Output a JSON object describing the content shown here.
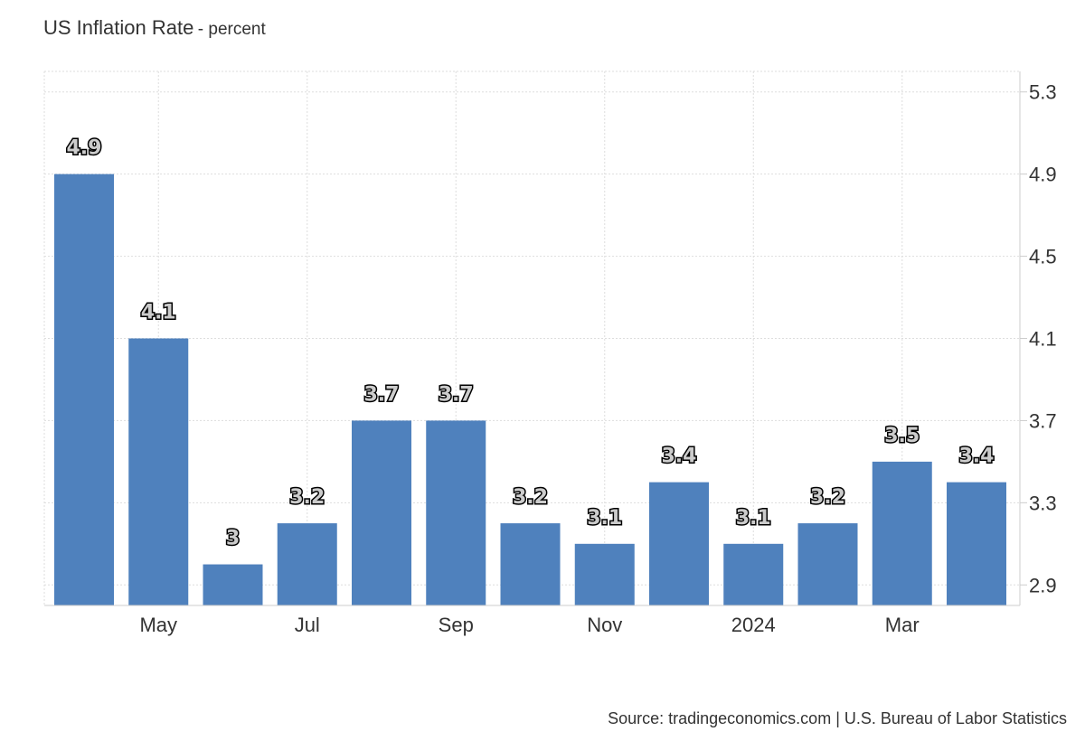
{
  "chart_data": {
    "type": "bar",
    "title": "US Inflation Rate",
    "subtitle": "- percent",
    "source": "Source: tradingeconomics.com | U.S. Bureau of Labor Statistics",
    "values": [
      4.9,
      4.1,
      3,
      3.2,
      3.7,
      3.7,
      3.2,
      3.1,
      3.4,
      3.1,
      3.2,
      3.5,
      3.4
    ],
    "value_labels": [
      "4.9",
      "4.1",
      "3",
      "3.2",
      "3.7",
      "3.7",
      "3.2",
      "3.1",
      "3.4",
      "3.1",
      "3.2",
      "3.5",
      "3.4"
    ],
    "x_tick_labels": [
      {
        "label": "May",
        "index": 1
      },
      {
        "label": "Jul",
        "index": 3
      },
      {
        "label": "Sep",
        "index": 5
      },
      {
        "label": "Nov",
        "index": 7
      },
      {
        "label": "2024",
        "index": 9
      },
      {
        "label": "Mar",
        "index": 11
      }
    ],
    "y_ticks": [
      "2.9",
      "3.3",
      "3.7",
      "4.1",
      "4.5",
      "4.9",
      "5.3"
    ],
    "ylim": [
      2.8,
      5.4
    ],
    "y_axis_side": "right",
    "grid": true,
    "bar_color": "#4f81bd"
  }
}
